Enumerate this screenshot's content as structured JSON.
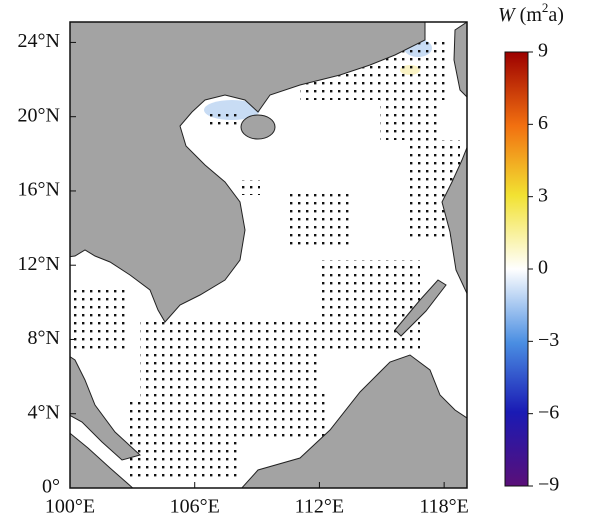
{
  "map": {
    "xlim": [
      100,
      119.1
    ],
    "ylim": [
      0,
      25.1
    ],
    "xticks": [
      {
        "value": 100,
        "label": "100°E"
      },
      {
        "value": 106,
        "label": "106°E"
      },
      {
        "value": 112,
        "label": "112°E"
      },
      {
        "value": 118,
        "label": "118°E"
      }
    ],
    "yticks": [
      {
        "value": 0,
        "label": "0°"
      },
      {
        "value": 4,
        "label": "4°N"
      },
      {
        "value": 8,
        "label": "8°N"
      },
      {
        "value": 12,
        "label": "12°N"
      },
      {
        "value": 16,
        "label": "16°N"
      },
      {
        "value": 20,
        "label": "20°N"
      },
      {
        "value": 24,
        "label": "24°N"
      }
    ]
  },
  "colorbar": {
    "label": {
      "symbol": "W",
      "unit_open": " (m",
      "superscript": "2",
      "unit_close": "a)"
    },
    "lim": [
      -9,
      9
    ],
    "ticks": [
      {
        "value": 9,
        "label": "9"
      },
      {
        "value": 6,
        "label": "6"
      },
      {
        "value": 3,
        "label": "3"
      },
      {
        "value": 0,
        "label": "0"
      },
      {
        "value": -3,
        "label": "−3"
      },
      {
        "value": -6,
        "label": "−6"
      },
      {
        "value": -9,
        "label": "−9"
      }
    ]
  }
}
